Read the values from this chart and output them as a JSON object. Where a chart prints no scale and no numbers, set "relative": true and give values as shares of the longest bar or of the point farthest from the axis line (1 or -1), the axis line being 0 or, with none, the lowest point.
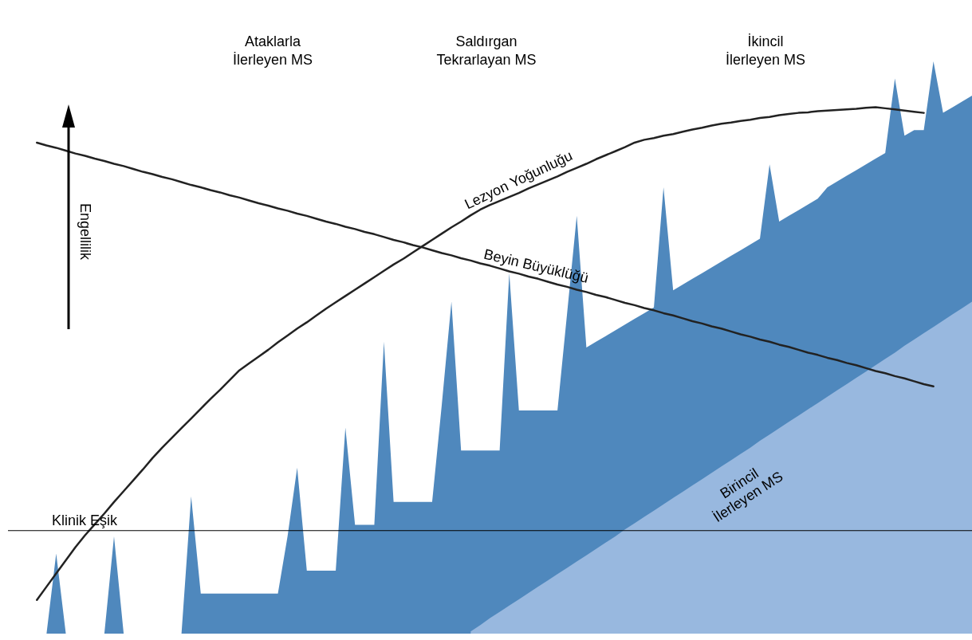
{
  "chart_data": {
    "type": "area",
    "relative": true,
    "ylabel": "Engellilik",
    "categories": [
      null,
      null,
      null,
      null,
      null,
      null,
      null,
      null,
      null,
      null,
      null,
      null,
      null,
      null,
      null,
      null,
      null,
      null,
      null,
      null,
      null,
      null,
      null,
      null,
      null,
      null,
      null,
      null,
      null,
      null,
      null,
      null,
      null,
      null,
      null,
      null,
      null,
      null,
      null,
      null,
      null,
      null,
      null,
      null,
      null,
      null,
      null,
      null,
      null,
      null,
      null,
      null,
      null,
      null,
      null,
      null,
      null,
      null,
      null,
      null,
      null,
      null,
      null,
      null,
      null,
      null,
      null,
      null,
      null,
      null,
      null,
      null,
      null,
      null,
      null,
      null,
      null,
      null,
      null,
      null,
      null,
      null,
      null,
      null,
      null,
      null,
      null,
      null,
      null,
      null,
      null,
      null,
      null,
      null,
      null,
      null,
      null,
      null,
      null,
      null,
      null
    ],
    "series": [
      {
        "color": "#4f88bd",
        "values": [
          0,
          0,
          0,
          0,
          0,
          0.14,
          0,
          0,
          0,
          0,
          0,
          0.17,
          0,
          0,
          0,
          0,
          0,
          0,
          0,
          0.24,
          0.07,
          0.07,
          0.07,
          0.07,
          0.07,
          0.07,
          0.07,
          0.07,
          0.07,
          0.17,
          0.29,
          0.11,
          0.11,
          0.11,
          0.11,
          0.36,
          0.19,
          0.19,
          0.19,
          0.51,
          0.23,
          0.23,
          0.23,
          0.23,
          0.23,
          0.4,
          0.58,
          0.32,
          0.32,
          0.32,
          0.32,
          0.32,
          0.63,
          0.39,
          0.39,
          0.39,
          0.39,
          0.39,
          0.56,
          0.73,
          0.5,
          0.51,
          0.52,
          0.53,
          0.54,
          0.55,
          0.56,
          0.57,
          0.78,
          0.6,
          0.61,
          0.62,
          0.63,
          0.64,
          0.65,
          0.66,
          0.67,
          0.68,
          0.69,
          0.82,
          0.72,
          0.73,
          0.74,
          0.75,
          0.76,
          0.78,
          0.79,
          0.8,
          0.81,
          0.82,
          0.83,
          0.84,
          0.97,
          0.87,
          0.88,
          0.88,
          1.0,
          0.91,
          0.92,
          0.93,
          0.94
        ]
      },
      {
        "name": "Birincil\nİlerleyen MS",
        "color": "#98b8df",
        "values": [
          null,
          null,
          null,
          null,
          null,
          null,
          null,
          null,
          null,
          null,
          null,
          null,
          null,
          null,
          null,
          null,
          null,
          null,
          null,
          null,
          null,
          null,
          null,
          null,
          null,
          null,
          null,
          null,
          null,
          null,
          null,
          null,
          null,
          null,
          null,
          null,
          null,
          null,
          null,
          null,
          null,
          null,
          null,
          null,
          null,
          null,
          null,
          null,
          0.004,
          0.015,
          0.027,
          0.038,
          0.049,
          0.06,
          0.071,
          0.082,
          0.093,
          0.104,
          0.115,
          0.126,
          0.137,
          0.148,
          0.159,
          0.17,
          0.182,
          0.193,
          0.204,
          0.215,
          0.226,
          0.237,
          0.248,
          0.259,
          0.27,
          0.281,
          0.292,
          0.303,
          0.314,
          0.325,
          0.337,
          0.348,
          0.359,
          0.37,
          0.381,
          0.392,
          0.403,
          0.414,
          0.425,
          0.436,
          0.447,
          0.458,
          0.469,
          0.48,
          0.491,
          0.503,
          0.514,
          0.525,
          0.536,
          0.547,
          0.558,
          0.569,
          0.58
        ]
      },
      {
        "type": "line",
        "name": "Lezyon Yoğunluğu",
        "color": "#222222",
        "values": [
          null,
          null,
          null,
          0.059,
          0.082,
          0.105,
          0.128,
          0.151,
          0.172,
          0.191,
          0.21,
          0.23,
          0.249,
          0.268,
          0.287,
          0.307,
          0.325,
          0.342,
          0.359,
          0.376,
          0.393,
          0.41,
          0.426,
          0.443,
          0.46,
          0.472,
          0.484,
          0.496,
          0.509,
          0.521,
          0.533,
          0.544,
          0.556,
          0.568,
          0.579,
          0.59,
          0.601,
          0.612,
          0.623,
          0.634,
          0.645,
          0.655,
          0.666,
          0.677,
          0.688,
          0.699,
          0.71,
          0.72,
          0.731,
          0.741,
          0.749,
          0.756,
          0.763,
          0.77,
          0.778,
          0.785,
          0.792,
          0.799,
          0.807,
          0.814,
          0.821,
          0.829,
          0.836,
          0.843,
          0.85,
          0.858,
          0.863,
          0.866,
          0.87,
          0.873,
          0.877,
          0.881,
          0.884,
          0.888,
          0.891,
          0.893,
          0.896,
          0.898,
          0.901,
          0.903,
          0.906,
          0.908,
          0.91,
          0.911,
          0.913,
          0.914,
          0.915,
          0.916,
          0.917,
          0.919,
          0.92,
          0.918,
          0.916,
          0.914,
          0.912,
          0.91,
          null,
          null,
          null,
          null,
          null
        ]
      },
      {
        "type": "line",
        "name": "Beyin Büyüklüğü",
        "color": "#222222",
        "values": [
          null,
          null,
          null,
          0.858,
          0.853,
          0.849,
          0.844,
          0.839,
          0.835,
          0.83,
          0.826,
          0.821,
          0.817,
          0.812,
          0.807,
          0.803,
          0.798,
          0.794,
          0.789,
          0.784,
          0.78,
          0.775,
          0.771,
          0.766,
          0.762,
          0.757,
          0.752,
          0.748,
          0.743,
          0.739,
          0.734,
          0.73,
          0.725,
          0.72,
          0.716,
          0.711,
          0.707,
          0.702,
          0.698,
          0.693,
          0.688,
          0.684,
          0.679,
          0.675,
          0.67,
          0.665,
          0.661,
          0.656,
          0.652,
          0.647,
          0.643,
          0.638,
          0.633,
          0.629,
          0.624,
          0.62,
          0.615,
          0.61,
          0.606,
          0.601,
          0.597,
          0.592,
          0.588,
          0.583,
          0.578,
          0.574,
          0.569,
          0.565,
          0.56,
          0.556,
          0.551,
          0.546,
          0.542,
          0.537,
          0.533,
          0.528,
          0.523,
          0.519,
          0.514,
          0.51,
          0.505,
          0.501,
          0.496,
          0.491,
          0.487,
          0.482,
          0.478,
          0.473,
          0.469,
          0.464,
          0.459,
          0.455,
          0.45,
          0.446,
          0.441,
          0.436,
          0.432,
          null,
          null,
          null,
          null
        ]
      }
    ],
    "ref_lines": [
      {
        "axis": "y",
        "value": 0.18,
        "label": "Klinik Eşik"
      }
    ],
    "annotations": [
      "Ataklarla\nİlerleyen MS",
      "Saldırgan\nTekrarlayan MS",
      "İkincil\nİlerleyen MS"
    ]
  }
}
